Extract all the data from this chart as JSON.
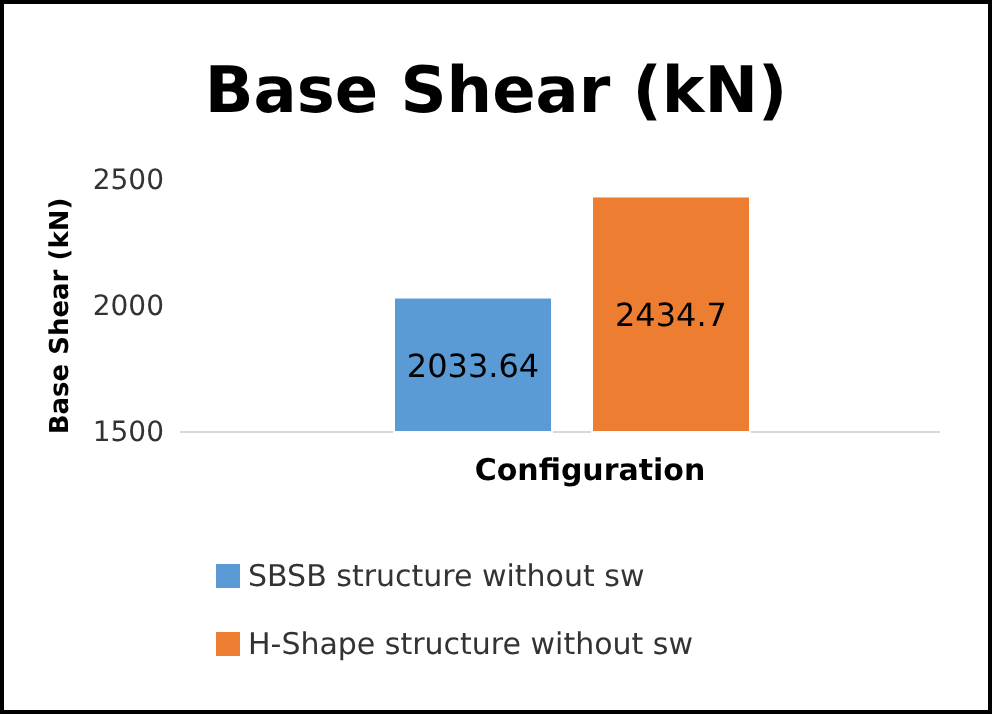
{
  "chart_data": {
    "type": "bar",
    "title": "Base Shear (kN)",
    "xlabel": "Configuration",
    "ylabel": "Base Shear (kN)",
    "categories": [
      null
    ],
    "series": [
      {
        "name": "SBSB structure without sw",
        "color": "#5b9bd5",
        "values": [
          2033.64
        ]
      },
      {
        "name": "H-Shape structure without sw",
        "color": "#ed7d31",
        "values": [
          2434.7
        ]
      }
    ],
    "ylim": [
      1500,
      2500
    ],
    "yticks": [
      1500,
      2000,
      2500
    ],
    "grid": false,
    "legend": "bottom",
    "data_labels": true
  }
}
